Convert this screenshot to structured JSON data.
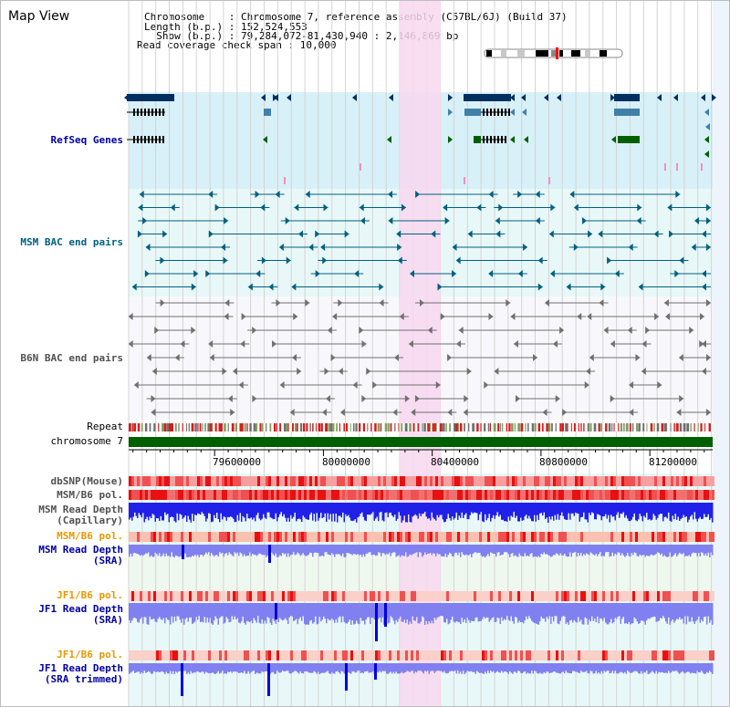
{
  "panel_title": "Map View",
  "header": {
    "chromosome_line": "Chromosome    : Chromosome 7, reference assembly (C57BL/6J) (Build 37)",
    "length_line": "Length (b.p.) : 152,524,553",
    "show_line": "  Show (b.p.) : 79,284,072-81,430,940 : 2,146,869 bp",
    "coverage_line": "Read coverage check span : 10,000"
  },
  "tracks": {
    "refseq": "RefSeq Genes",
    "msm_bac": "MSM BAC end pairs",
    "b6n_bac": "B6N BAC end pairs",
    "repeat": "Repeat",
    "chromosome": "chromosome 7",
    "dbsnp": "dbSNP(Mouse)",
    "msm_b6_pol_1": "MSM/B6 pol.",
    "msm_depth_cap_1": "MSM Read Depth",
    "msm_depth_cap_2": "(Capillary)",
    "msm_b6_pol_2": "MSM/B6 pol.",
    "msm_depth_sra_1": "MSM Read Depth",
    "msm_depth_sra_2": "(SRA)",
    "jf1_b6_pol_1": "JF1/B6 pol.",
    "jf1_depth_sra_1": "JF1 Read Depth",
    "jf1_depth_sra_2": "(SRA)",
    "jf1_b6_pol_2": "JF1/B6 pol.",
    "jf1_depth_trim_1": "JF1 Read Depth",
    "jf1_depth_trim_2": "(SRA trimmed)"
  },
  "axis": {
    "ticks": [
      {
        "label": "79600000",
        "value": 79600000
      },
      {
        "label": "80000000",
        "value": 80000000
      },
      {
        "label": "80400000",
        "value": 80400000
      },
      {
        "label": "80800000",
        "value": 80800000
      },
      {
        "label": "81200000",
        "value": 81200000
      }
    ],
    "range": [
      79284072,
      81430940
    ]
  },
  "colors": {
    "refseq_bg": "#d8f0f8",
    "bac_bg": "#e8f8f8",
    "highlight": "#f8d8f0",
    "gene_dark": "#003060",
    "gene_mid": "#4080a8",
    "gene_green": "#006000",
    "msm_pair": "#006080",
    "b6n_pair": "#707070",
    "chrom_bar": "#006000",
    "depth_blue": "#0000e0",
    "depth_light": "#8080f0",
    "pol_red": "#f04040"
  }
}
